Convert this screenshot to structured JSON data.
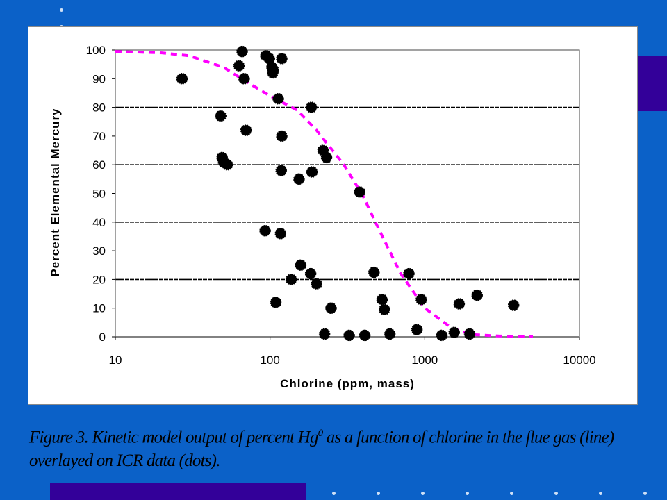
{
  "slide": {
    "background_color": "#0b61c8",
    "accent_color": "#330099",
    "caption_pre": "Figure 3.  Kinetic model output of percent Hg",
    "caption_sup": "0",
    "caption_post": " as a function of chlorine in the flue gas (line) overlayed on ICR data (dots)."
  },
  "chart_data": {
    "type": "scatter",
    "title": "",
    "xlabel": "Chlorine (ppm, mass)",
    "ylabel": "Percent Elemental Mercury",
    "xscale": "log",
    "xlim": [
      10,
      10000
    ],
    "ylim": [
      0,
      100
    ],
    "x_ticks": [
      "10",
      "100",
      "1000",
      "10000"
    ],
    "y_ticks": [
      "0",
      "10",
      "20",
      "30",
      "40",
      "50",
      "60",
      "70",
      "80",
      "90",
      "100"
    ],
    "grid": "horizontal",
    "series": [
      {
        "kind": "scatter",
        "color": "#000000",
        "x": [
          27,
          48,
          49,
          50,
          53,
          63,
          66,
          68,
          70,
          93,
          94,
          99,
          103,
          104,
          105,
          109,
          113,
          117,
          118,
          119,
          119,
          137,
          154,
          158,
          183,
          185,
          187,
          200,
          220,
          225,
          232,
          248,
          325,
          380,
          410,
          470,
          530,
          548,
          595,
          790,
          890,
          950,
          1290,
          1550,
          1670,
          1950,
          2180,
          3750
        ],
        "y": [
          90,
          77,
          62.5,
          61,
          60,
          94.5,
          99.5,
          90,
          72,
          37,
          98,
          97,
          94,
          92,
          93,
          12,
          83,
          36,
          58,
          70,
          97,
          20,
          55,
          25,
          22,
          80,
          57.5,
          18.5,
          65,
          1,
          62.5,
          10,
          0.5,
          50.5,
          0.5,
          22.5,
          13,
          9.5,
          1,
          22,
          2.5,
          13,
          0.5,
          1.5,
          11.5,
          1,
          14.5,
          11
        ]
      },
      {
        "kind": "line",
        "name": "",
        "color": "#ff00ff",
        "style": "dashed",
        "x": [
          10,
          20,
          30,
          50,
          70,
          100,
          150,
          200,
          300,
          400,
          500,
          700,
          1000,
          1500,
          2000,
          3000,
          5000
        ],
        "y": [
          99.5,
          99,
          98,
          94,
          89,
          84,
          79,
          72,
          60,
          49,
          38,
          22,
          10,
          3,
          0.8,
          0.3,
          0.1
        ]
      }
    ]
  }
}
